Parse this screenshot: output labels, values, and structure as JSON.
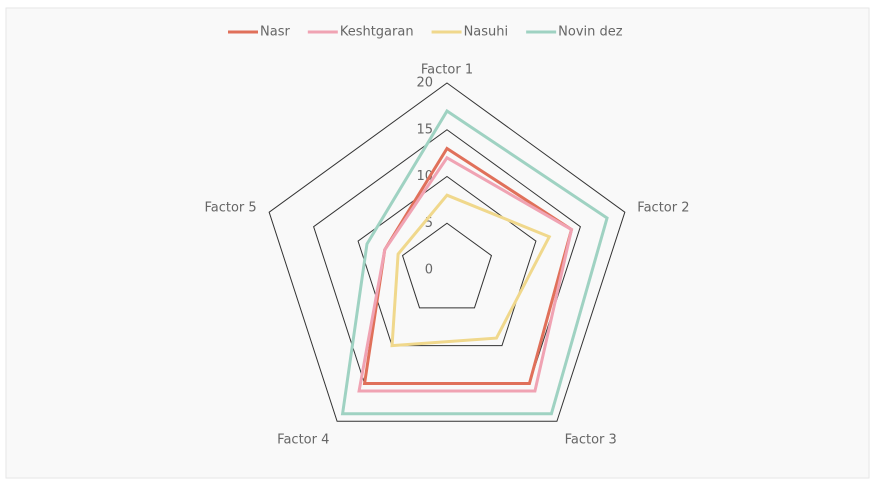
{
  "chart_data": {
    "type": "radar",
    "categories": [
      "Factor 1",
      "Factor 2",
      "Factor 3",
      "Factor 4",
      "Factor 5"
    ],
    "series": [
      {
        "name": "Nasr",
        "color": "#e0705a",
        "values": [
          13,
          14,
          15,
          15,
          7
        ]
      },
      {
        "name": "Keshtgaran",
        "color": "#f0a3b3",
        "values": [
          12,
          14,
          16,
          16,
          7
        ]
      },
      {
        "name": "Nasuhi",
        "color": "#f0d88c",
        "values": [
          8,
          11.5,
          9,
          10,
          5.5
        ]
      },
      {
        "name": "Novin dez",
        "color": "#9fd2c2",
        "values": [
          17,
          18,
          19,
          19,
          9
        ]
      }
    ],
    "ylim": [
      0,
      20
    ],
    "yticks": [
      0,
      5,
      10,
      15,
      20
    ],
    "grid": true,
    "legend": "top"
  }
}
